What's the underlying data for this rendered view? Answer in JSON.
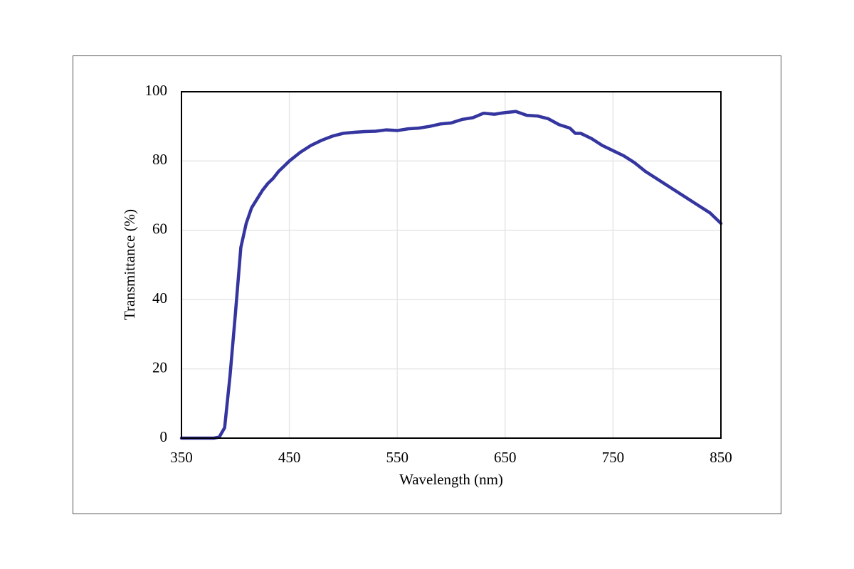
{
  "chart_data": {
    "type": "line",
    "x_label": "Wavelength  (nm)",
    "y_label": "Transmittance  (%)",
    "x": [
      350,
      360,
      370,
      380,
      385,
      390,
      395,
      400,
      405,
      410,
      415,
      420,
      425,
      430,
      435,
      440,
      445,
      450,
      460,
      470,
      480,
      490,
      500,
      510,
      520,
      530,
      540,
      550,
      560,
      570,
      580,
      590,
      600,
      610,
      620,
      630,
      640,
      650,
      660,
      670,
      680,
      690,
      700,
      710,
      715,
      720,
      730,
      740,
      750,
      760,
      770,
      780,
      790,
      800,
      810,
      820,
      830,
      840,
      850
    ],
    "series": [
      {
        "color": "#3535a0",
        "values": [
          0,
          0,
          0,
          0,
          0.3,
          3,
          18,
          36,
          55,
          62,
          66.5,
          69,
          71.5,
          73.5,
          75,
          77,
          78.5,
          80,
          82.5,
          84.5,
          86,
          87.2,
          88,
          88.3,
          88.5,
          88.6,
          89,
          88.8,
          89.3,
          89.5,
          90,
          90.7,
          91,
          92,
          92.5,
          93.8,
          93.5,
          94,
          94.3,
          93.2,
          93,
          92.2,
          90.5,
          89.5,
          88,
          88,
          86.5,
          84.5,
          83,
          81.5,
          79.5,
          77,
          75,
          73,
          71,
          69,
          67,
          65,
          62
        ]
      }
    ],
    "xlim": [
      350,
      850
    ],
    "xticks": [
      350,
      450,
      550,
      650,
      750,
      850
    ],
    "ylim": [
      0,
      100
    ],
    "yticks": [
      0,
      20,
      40,
      60,
      80,
      100
    ],
    "grid": true
  }
}
